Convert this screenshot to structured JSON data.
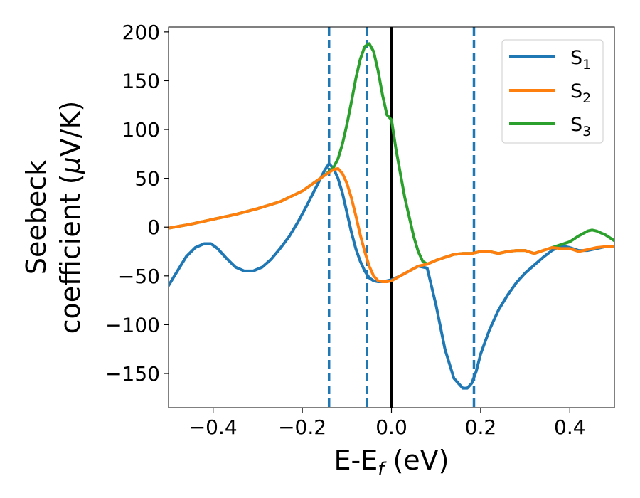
{
  "chart_data": {
    "type": "line",
    "xlabel_parts": [
      "E-E",
      "f",
      " (eV)"
    ],
    "ylabel_line1": "Seebeck",
    "ylabel_line2_parts": [
      "coefficient  (",
      "μ",
      "V/K)"
    ],
    "xlim": [
      -0.5,
      0.5
    ],
    "ylim": [
      -185,
      205
    ],
    "x_ticks": [
      -0.4,
      -0.2,
      0.0,
      0.2,
      0.4
    ],
    "x_tick_labels": [
      "−0.4",
      "−0.2",
      "0.0",
      "0.2",
      "0.4"
    ],
    "y_ticks": [
      -150,
      -100,
      -50,
      0,
      50,
      100,
      150,
      200
    ],
    "y_tick_labels": [
      "−150",
      "−100",
      "−50",
      "0",
      "50",
      "100",
      "150",
      "200"
    ],
    "grid": false,
    "legend_position": "top-right",
    "series": [
      {
        "name": "S1",
        "name_main": "S",
        "name_sub": "1",
        "color": "#1f77b4",
        "x": [
          -0.5,
          -0.48,
          -0.46,
          -0.44,
          -0.42,
          -0.405,
          -0.39,
          -0.37,
          -0.35,
          -0.33,
          -0.31,
          -0.29,
          -0.27,
          -0.25,
          -0.23,
          -0.21,
          -0.19,
          -0.17,
          -0.15,
          -0.14,
          -0.13,
          -0.12,
          -0.11,
          -0.1,
          -0.09,
          -0.08,
          -0.07,
          -0.06,
          -0.05,
          -0.04,
          -0.03,
          -0.02,
          -0.01,
          0.0,
          0.02,
          0.04,
          0.06,
          0.08,
          0.1,
          0.12,
          0.14,
          0.16,
          0.17,
          0.18,
          0.19,
          0.2,
          0.22,
          0.24,
          0.26,
          0.28,
          0.3,
          0.32,
          0.34,
          0.36,
          0.38,
          0.4,
          0.42,
          0.44,
          0.46,
          0.48,
          0.5
        ],
        "y": [
          -60,
          -45,
          -30,
          -21,
          -17,
          -17,
          -22,
          -32,
          -41,
          -45,
          -45,
          -41,
          -33,
          -22,
          -10,
          5,
          22,
          40,
          58,
          65,
          60,
          50,
          35,
          15,
          -5,
          -22,
          -35,
          -45,
          -52,
          -55,
          -56,
          -56,
          -55,
          -54,
          -50,
          -45,
          -40,
          -42,
          -80,
          -125,
          -155,
          -165,
          -165,
          -160,
          -148,
          -130,
          -105,
          -85,
          -70,
          -57,
          -47,
          -39,
          -31,
          -24,
          -19,
          -21,
          -24,
          -24,
          -22,
          -20,
          -20
        ]
      },
      {
        "name": "S2",
        "name_main": "S",
        "name_sub": "2",
        "color": "#ff7f0e",
        "x": [
          -0.5,
          -0.45,
          -0.4,
          -0.35,
          -0.3,
          -0.25,
          -0.2,
          -0.15,
          -0.13,
          -0.12,
          -0.11,
          -0.1,
          -0.09,
          -0.08,
          -0.07,
          -0.06,
          -0.05,
          -0.04,
          -0.03,
          -0.02,
          -0.01,
          0.0,
          0.02,
          0.04,
          0.06,
          0.08,
          0.1,
          0.12,
          0.14,
          0.16,
          0.18,
          0.2,
          0.22,
          0.24,
          0.26,
          0.28,
          0.3,
          0.32,
          0.34,
          0.36,
          0.38,
          0.4,
          0.42,
          0.44,
          0.46,
          0.48,
          0.5
        ],
        "y": [
          -1,
          3,
          8,
          13,
          19,
          26,
          37,
          53,
          59,
          60,
          55,
          45,
          30,
          12,
          -8,
          -25,
          -40,
          -50,
          -55,
          -56,
          -56,
          -55,
          -50,
          -45,
          -40,
          -38,
          -34,
          -31,
          -28,
          -27,
          -27,
          -25,
          -25,
          -27,
          -25,
          -24,
          -24,
          -27,
          -24,
          -21,
          -22,
          -22,
          -25,
          -23,
          -21,
          -20,
          -20
        ]
      },
      {
        "name": "S3",
        "name_main": "S",
        "name_sub": "3",
        "color": "#2ca02c",
        "x": [
          -0.5,
          -0.45,
          -0.4,
          -0.35,
          -0.3,
          -0.25,
          -0.2,
          -0.15,
          -0.13,
          -0.12,
          -0.11,
          -0.1,
          -0.09,
          -0.08,
          -0.07,
          -0.06,
          -0.05,
          -0.04,
          -0.03,
          -0.02,
          -0.01,
          0.0,
          0.01,
          0.02,
          0.03,
          0.04,
          0.05,
          0.06,
          0.07,
          0.08,
          0.1,
          0.12,
          0.14,
          0.16,
          0.18,
          0.2,
          0.22,
          0.24,
          0.26,
          0.28,
          0.3,
          0.32,
          0.34,
          0.36,
          0.38,
          0.4,
          0.42,
          0.44,
          0.45,
          0.46,
          0.48,
          0.5
        ],
        "y": [
          -1,
          3,
          8,
          13,
          19,
          26,
          37,
          53,
          61,
          70,
          85,
          105,
          128,
          152,
          172,
          185,
          188,
          180,
          160,
          135,
          115,
          110,
          80,
          55,
          30,
          10,
          -10,
          -25,
          -35,
          -38,
          -34,
          -31,
          -28,
          -27,
          -27,
          -25,
          -25,
          -27,
          -25,
          -24,
          -24,
          -27,
          -24,
          -21,
          -18,
          -15,
          -9,
          -4,
          -3,
          -4,
          -8,
          -14
        ]
      }
    ],
    "reference_lines": [
      {
        "x": -0.14,
        "style": "dashed",
        "color": "#1f77b4"
      },
      {
        "x": -0.055,
        "style": "dashed",
        "color": "#1f77b4"
      },
      {
        "x": 0.0,
        "style": "solid",
        "color": "#000000"
      },
      {
        "x": 0.185,
        "style": "dashed",
        "color": "#1f77b4"
      }
    ]
  }
}
